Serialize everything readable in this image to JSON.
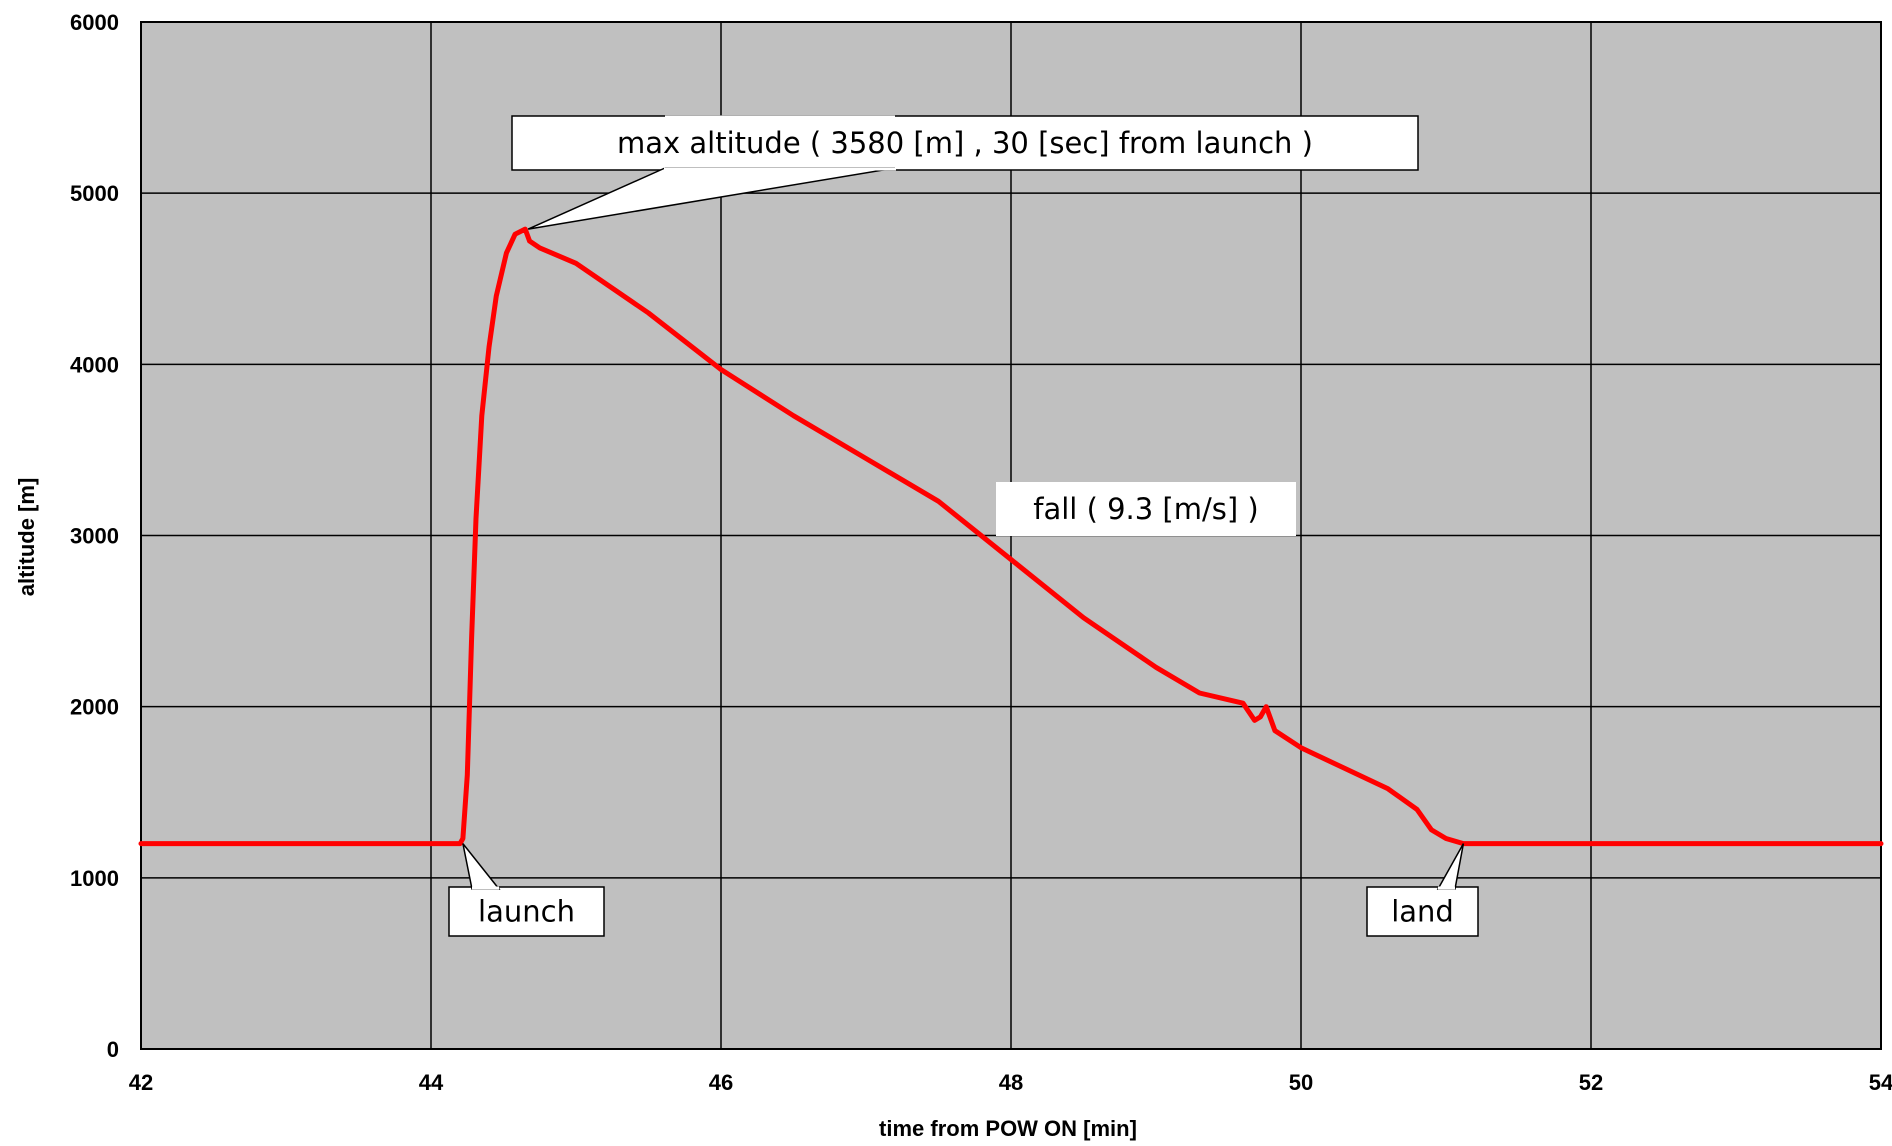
{
  "chart_data": {
    "type": "line",
    "title": "",
    "xlabel": "time from POW ON [min]",
    "ylabel": "altitude [m]",
    "xlim": [
      42,
      54
    ],
    "ylim": [
      0,
      6000
    ],
    "x_ticks": [
      42,
      44,
      46,
      48,
      50,
      52,
      54
    ],
    "y_ticks": [
      0,
      1000,
      2000,
      3000,
      4000,
      5000,
      6000
    ],
    "grid": true,
    "legend": "none",
    "colors": {
      "plot_background": "#c0c0c0",
      "series": "#ff0000",
      "grid": "#000000"
    },
    "series": [
      {
        "values": [
          [
            42.0,
            1200
          ],
          [
            44.2,
            1200
          ],
          [
            44.22,
            1230
          ],
          [
            44.25,
            1600
          ],
          [
            44.28,
            2400
          ],
          [
            44.31,
            3100
          ],
          [
            44.35,
            3700
          ],
          [
            44.4,
            4100
          ],
          [
            44.45,
            4400
          ],
          [
            44.52,
            4650
          ],
          [
            44.58,
            4760
          ],
          [
            44.65,
            4790
          ],
          [
            44.68,
            4720
          ],
          [
            44.75,
            4680
          ],
          [
            45.0,
            4590
          ],
          [
            45.5,
            4300
          ],
          [
            46.0,
            3970
          ],
          [
            46.5,
            3700
          ],
          [
            47.0,
            3450
          ],
          [
            47.5,
            3200
          ],
          [
            48.0,
            2860
          ],
          [
            48.5,
            2520
          ],
          [
            49.0,
            2230
          ],
          [
            49.3,
            2080
          ],
          [
            49.6,
            2020
          ],
          [
            49.68,
            1920
          ],
          [
            49.72,
            1940
          ],
          [
            49.76,
            2000
          ],
          [
            49.82,
            1860
          ],
          [
            50.0,
            1760
          ],
          [
            50.3,
            1640
          ],
          [
            50.6,
            1520
          ],
          [
            50.8,
            1400
          ],
          [
            50.9,
            1280
          ],
          [
            51.0,
            1230
          ],
          [
            51.12,
            1200
          ],
          [
            54.0,
            1200
          ]
        ]
      }
    ],
    "annotations": [
      {
        "text": "max altitude ( 3580 [m] , 30 [sec] from launch )",
        "x": 44.67,
        "y": 4790
      },
      {
        "text": "fall ( 9.3 [m/s] )",
        "x": 48.8,
        "y": 2700
      },
      {
        "text": "launch",
        "x": 44.22,
        "y": 1200
      },
      {
        "text": "land",
        "x": 51.12,
        "y": 1200
      }
    ]
  }
}
